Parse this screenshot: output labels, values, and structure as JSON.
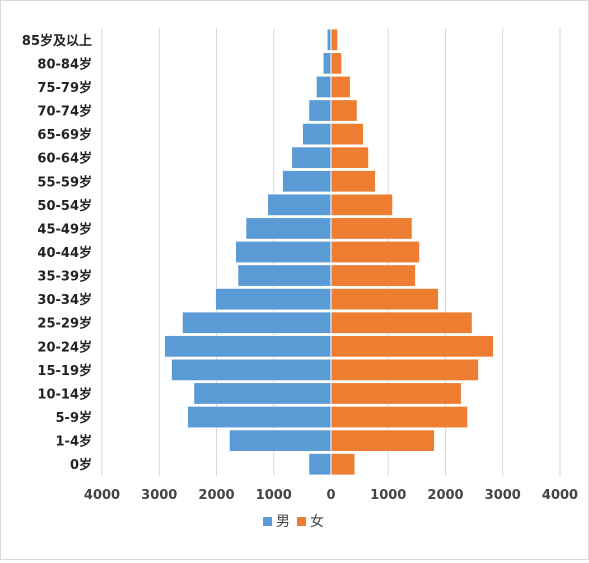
{
  "chart_data": {
    "type": "bar",
    "orientation": "horizontal",
    "categories": [
      "0岁",
      "1-4岁",
      "5-9岁",
      "10-14岁",
      "15-19岁",
      "20-24岁",
      "25-29岁",
      "30-34岁",
      "35-39岁",
      "40-44岁",
      "45-49岁",
      "50-54岁",
      "55-59岁",
      "60-64岁",
      "65-69岁",
      "70-74岁",
      "75-79岁",
      "80-84岁",
      "85岁及以上"
    ],
    "series": [
      {
        "name": "男",
        "color": "#5b9bd5",
        "direction": "left",
        "values": [
          380,
          1770,
          2500,
          2390,
          2780,
          2900,
          2590,
          2010,
          1620,
          1660,
          1480,
          1100,
          840,
          680,
          490,
          380,
          250,
          130,
          60
        ]
      },
      {
        "name": "女",
        "color": "#ed7d31",
        "direction": "right",
        "values": [
          410,
          1800,
          2380,
          2270,
          2570,
          2830,
          2460,
          1870,
          1470,
          1540,
          1410,
          1070,
          770,
          650,
          560,
          450,
          330,
          180,
          110
        ]
      }
    ],
    "xlim": [
      -4000,
      4000
    ],
    "xticks": [
      -4000,
      -3000,
      -2000,
      -1000,
      0,
      1000,
      2000,
      3000,
      4000
    ],
    "xtick_labels": [
      "4000",
      "3000",
      "2000",
      "1000",
      "0",
      "1000",
      "2000",
      "3000",
      "4000"
    ],
    "grid": "vertical",
    "gridline_color": "#d9d9d9",
    "legend_position": "bottom",
    "title": "",
    "xlabel": "",
    "ylabel": ""
  }
}
